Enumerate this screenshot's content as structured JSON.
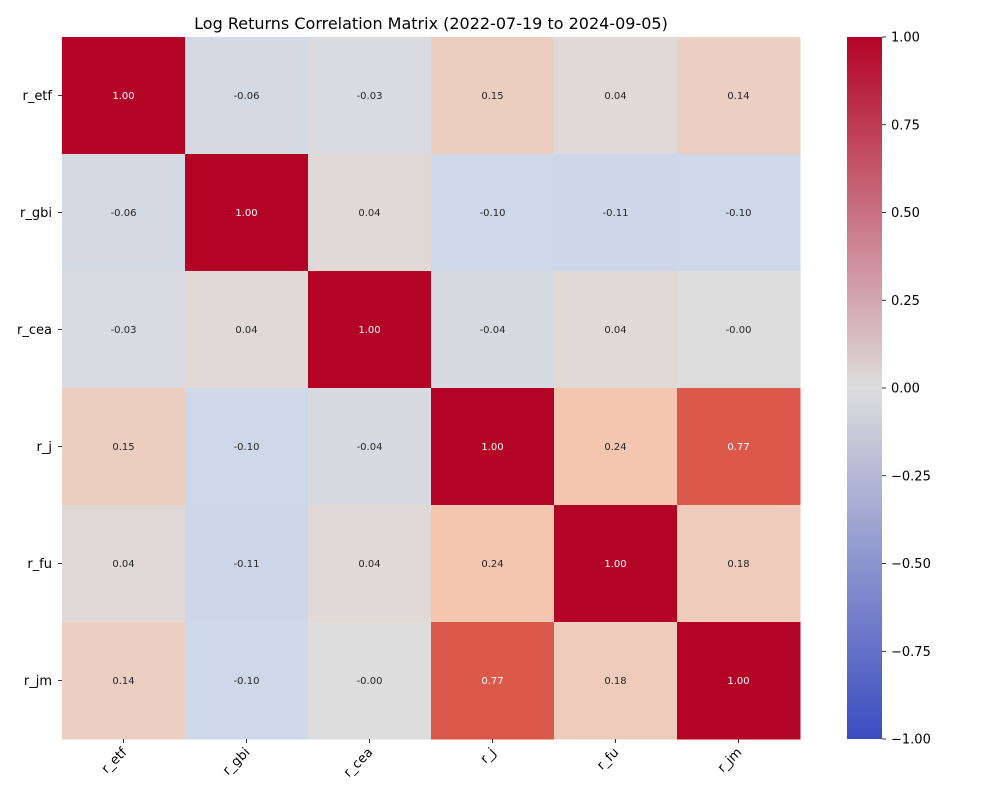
{
  "chart_data": {
    "type": "heatmap",
    "title": "Log Returns Correlation Matrix (2022-07-19 to 2024-09-05)",
    "row_labels": [
      "r_etf",
      "r_gbi",
      "r_cea",
      "r_j",
      "r_fu",
      "r_jm"
    ],
    "col_labels": [
      "r_etf",
      "r_gbi",
      "r_cea",
      "r_j",
      "r_fu",
      "r_jm"
    ],
    "values": [
      [
        1.0,
        -0.06,
        -0.03,
        0.15,
        0.04,
        0.14
      ],
      [
        -0.06,
        1.0,
        0.04,
        -0.1,
        -0.11,
        -0.1
      ],
      [
        -0.03,
        0.04,
        1.0,
        -0.04,
        0.04,
        -0.0
      ],
      [
        0.15,
        -0.1,
        -0.04,
        1.0,
        0.24,
        0.77
      ],
      [
        0.04,
        -0.11,
        0.04,
        0.24,
        1.0,
        0.18
      ],
      [
        0.14,
        -0.1,
        -0.0,
        0.77,
        0.18,
        1.0
      ]
    ],
    "cell_labels": [
      [
        "1.00",
        "-0.06",
        "-0.03",
        "0.15",
        "0.04",
        "0.14"
      ],
      [
        "-0.06",
        "1.00",
        "0.04",
        "-0.10",
        "-0.11",
        "-0.10"
      ],
      [
        "-0.03",
        "0.04",
        "1.00",
        "-0.04",
        "0.04",
        "-0.00"
      ],
      [
        "0.15",
        "-0.10",
        "-0.04",
        "1.00",
        "0.24",
        "0.77"
      ],
      [
        "0.04",
        "-0.11",
        "0.04",
        "0.24",
        "1.00",
        "0.18"
      ],
      [
        "0.14",
        "-0.10",
        "-0.00",
        "0.77",
        "0.18",
        "1.00"
      ]
    ],
    "colormap": "coolwarm",
    "colormap_stops": [
      "#3b4cc0",
      "#dddddd",
      "#b40426"
    ],
    "vmin": -1.0,
    "vmax": 1.0,
    "colorbar_ticks": [
      "1.00",
      "0.75",
      "0.50",
      "0.25",
      "0.00",
      "−0.25",
      "−0.50",
      "−0.75",
      "−1.00"
    ],
    "colorbar_tick_values": [
      1.0,
      0.75,
      0.5,
      0.25,
      0.0,
      -0.25,
      -0.5,
      -0.75,
      -1.0
    ],
    "grid": false,
    "legend": "colorbar-right"
  }
}
